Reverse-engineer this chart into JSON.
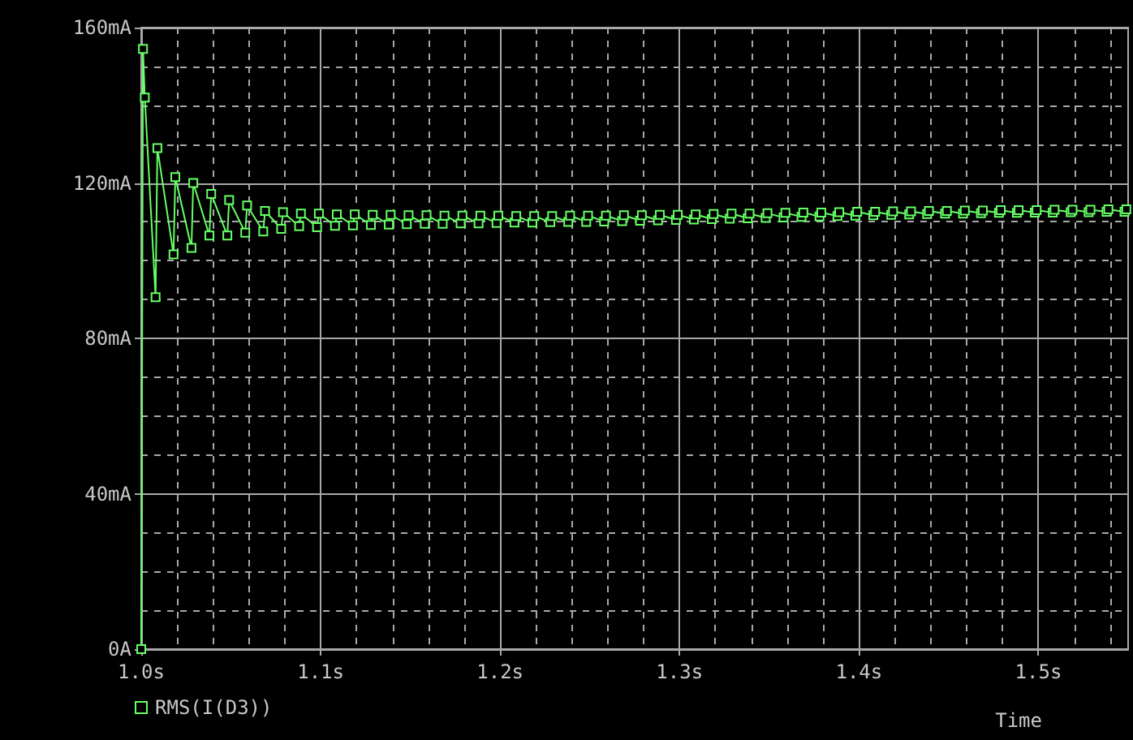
{
  "chart_data": {
    "type": "line",
    "xlabel": "Time",
    "legend": "bottom left",
    "marker": "square",
    "grid": true,
    "xlim": [
      1.0,
      1.55
    ],
    "xticks": [
      {
        "value": 1.0,
        "label": "1.0s"
      },
      {
        "value": 1.1,
        "label": "1.1s"
      },
      {
        "value": 1.2,
        "label": "1.2s"
      },
      {
        "value": 1.3,
        "label": "1.3s"
      },
      {
        "value": 1.4,
        "label": "1.4s"
      },
      {
        "value": 1.5,
        "label": "1.5s"
      }
    ],
    "ylim": [
      0,
      160
    ],
    "yticks": [
      {
        "value": 0,
        "label": "0A"
      },
      {
        "value": 40,
        "label": "40mA"
      },
      {
        "value": 80,
        "label": "80mA"
      },
      {
        "value": 120,
        "label": "120mA"
      },
      {
        "value": 160,
        "label": "160mA"
      }
    ],
    "x": [
      1.0,
      1.001,
      1.002,
      1.008,
      1.009,
      1.018,
      1.019,
      1.028,
      1.029,
      1.038,
      1.039,
      1.048,
      1.049,
      1.058,
      1.059,
      1.068,
      1.069,
      1.078,
      1.079,
      1.088,
      1.089,
      1.098,
      1.099,
      1.108,
      1.109,
      1.118,
      1.119,
      1.128,
      1.129,
      1.138,
      1.139,
      1.148,
      1.149,
      1.158,
      1.159,
      1.168,
      1.169,
      1.178,
      1.179,
      1.188,
      1.189,
      1.198,
      1.199,
      1.208,
      1.209,
      1.218,
      1.219,
      1.228,
      1.229,
      1.238,
      1.239,
      1.248,
      1.249,
      1.258,
      1.259,
      1.268,
      1.269,
      1.278,
      1.279,
      1.288,
      1.289,
      1.298,
      1.299,
      1.308,
      1.309,
      1.318,
      1.319,
      1.328,
      1.329,
      1.338,
      1.339,
      1.348,
      1.349,
      1.358,
      1.359,
      1.368,
      1.369,
      1.378,
      1.379,
      1.388,
      1.389,
      1.398,
      1.399,
      1.408,
      1.409,
      1.418,
      1.419,
      1.428,
      1.429,
      1.438,
      1.439,
      1.448,
      1.449,
      1.458,
      1.459,
      1.468,
      1.469,
      1.478,
      1.479,
      1.488,
      1.489,
      1.498,
      1.499,
      1.508,
      1.509,
      1.518,
      1.519,
      1.528,
      1.529,
      1.538,
      1.539,
      1.548,
      1.549
    ],
    "series": [
      {
        "name": "RMS(I(D3))",
        "color": "#66ff66",
        "values": [
          0,
          154.5,
          142,
          90.6,
          129,
          101.6,
          121.5,
          103.3,
          120,
          106.5,
          117.2,
          106.5,
          115.6,
          107.2,
          114.2,
          107.5,
          112.8,
          108.2,
          112.5,
          108.9,
          112.1,
          108.6,
          112.1,
          109.0,
          111.9,
          109.1,
          111.9,
          109.2,
          111.8,
          109.3,
          111.8,
          109.4,
          111.7,
          109.5,
          111.7,
          109.5,
          111.6,
          109.6,
          111.6,
          109.6,
          111.6,
          109.7,
          111.6,
          109.8,
          111.5,
          109.8,
          111.5,
          109.9,
          111.5,
          110.0,
          111.6,
          110.0,
          111.6,
          110.1,
          111.6,
          110.2,
          111.7,
          110.3,
          111.7,
          110.4,
          111.8,
          110.5,
          111.8,
          110.6,
          111.9,
          110.7,
          112.0,
          110.8,
          112.1,
          110.9,
          112.1,
          111.0,
          112.2,
          111.1,
          112.3,
          111.3,
          112.4,
          111.4,
          112.4,
          111.5,
          112.5,
          111.6,
          112.6,
          111.7,
          112.6,
          111.8,
          112.7,
          111.9,
          112.7,
          112.0,
          112.8,
          112.1,
          112.8,
          112.1,
          112.9,
          112.2,
          112.9,
          112.3,
          113.0,
          112.3,
          113.0,
          112.4,
          113.0,
          112.4,
          113.1,
          112.5,
          113.1,
          112.5,
          113.1,
          112.6,
          113.2,
          112.6,
          113.2
        ]
      }
    ]
  }
}
